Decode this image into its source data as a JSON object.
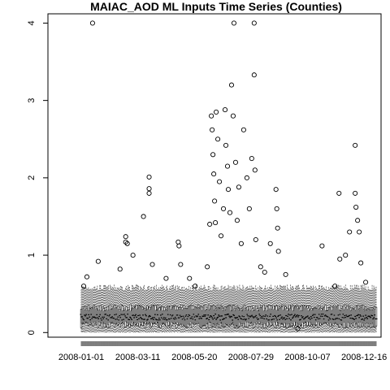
{
  "chart_data": {
    "type": "scatter",
    "subtype": "boxplot-time-series",
    "title": "MAIAC_AOD ML Inputs Time Series (Counties)",
    "xlabel": "",
    "ylabel": "",
    "x_ticks": [
      "2008-01-01",
      "2008-03-11",
      "2008-05-20",
      "2008-07-29",
      "2008-10-07",
      "2008-12-16"
    ],
    "x_range": [
      "2008-01-01",
      "2008-12-31"
    ],
    "y_ticks": [
      0,
      1,
      2,
      3,
      4
    ],
    "ylim": [
      -0.06,
      4.12
    ],
    "grid": false,
    "legend": "none",
    "box_fill": "#ffffff",
    "box_stroke": "#000000",
    "typical_box": {
      "q1": 0.1,
      "median": 0.2,
      "q3": 0.32,
      "whisker_low": 0.0,
      "whisker_high": 0.58
    },
    "outliers": [
      {
        "x": "2008-01-04",
        "y": 0.6
      },
      {
        "x": "2008-01-08",
        "y": 0.72
      },
      {
        "x": "2008-01-15",
        "y": 4.0
      },
      {
        "x": "2008-01-22",
        "y": 0.92
      },
      {
        "x": "2008-02-18",
        "y": 0.82
      },
      {
        "x": "2008-02-25",
        "y": 1.24
      },
      {
        "x": "2008-02-25",
        "y": 1.17
      },
      {
        "x": "2008-02-27",
        "y": 1.15
      },
      {
        "x": "2008-03-05",
        "y": 1.0
      },
      {
        "x": "2008-03-18",
        "y": 1.5
      },
      {
        "x": "2008-03-25",
        "y": 2.01
      },
      {
        "x": "2008-03-25",
        "y": 1.86
      },
      {
        "x": "2008-03-25",
        "y": 1.8
      },
      {
        "x": "2008-03-29",
        "y": 0.88
      },
      {
        "x": "2008-04-15",
        "y": 0.7
      },
      {
        "x": "2008-04-30",
        "y": 1.17
      },
      {
        "x": "2008-05-01",
        "y": 1.12
      },
      {
        "x": "2008-05-03",
        "y": 0.88
      },
      {
        "x": "2008-05-14",
        "y": 0.7
      },
      {
        "x": "2008-05-21",
        "y": 0.6
      },
      {
        "x": "2008-06-05",
        "y": 0.85
      },
      {
        "x": "2008-06-08",
        "y": 1.4
      },
      {
        "x": "2008-06-10",
        "y": 2.8
      },
      {
        "x": "2008-06-11",
        "y": 2.62
      },
      {
        "x": "2008-06-12",
        "y": 2.3
      },
      {
        "x": "2008-06-13",
        "y": 2.05
      },
      {
        "x": "2008-06-14",
        "y": 1.7
      },
      {
        "x": "2008-06-15",
        "y": 1.42
      },
      {
        "x": "2008-06-16",
        "y": 2.85
      },
      {
        "x": "2008-06-18",
        "y": 2.5
      },
      {
        "x": "2008-06-20",
        "y": 1.95
      },
      {
        "x": "2008-06-22",
        "y": 1.25
      },
      {
        "x": "2008-06-25",
        "y": 1.6
      },
      {
        "x": "2008-06-27",
        "y": 2.88
      },
      {
        "x": "2008-06-28",
        "y": 2.42
      },
      {
        "x": "2008-06-30",
        "y": 2.15
      },
      {
        "x": "2008-07-01",
        "y": 1.85
      },
      {
        "x": "2008-07-03",
        "y": 1.55
      },
      {
        "x": "2008-07-05",
        "y": 3.2
      },
      {
        "x": "2008-07-07",
        "y": 2.8
      },
      {
        "x": "2008-07-08",
        "y": 4.0
      },
      {
        "x": "2008-07-10",
        "y": 2.2
      },
      {
        "x": "2008-07-12",
        "y": 1.45
      },
      {
        "x": "2008-07-14",
        "y": 1.88
      },
      {
        "x": "2008-07-17",
        "y": 1.15
      },
      {
        "x": "2008-07-20",
        "y": 2.62
      },
      {
        "x": "2008-07-24",
        "y": 2.0
      },
      {
        "x": "2008-07-27",
        "y": 1.6
      },
      {
        "x": "2008-07-30",
        "y": 2.25
      },
      {
        "x": "2008-08-02",
        "y": 4.0
      },
      {
        "x": "2008-08-02",
        "y": 3.33
      },
      {
        "x": "2008-08-03",
        "y": 2.1
      },
      {
        "x": "2008-08-04",
        "y": 1.2
      },
      {
        "x": "2008-08-10",
        "y": 0.85
      },
      {
        "x": "2008-08-15",
        "y": 0.78
      },
      {
        "x": "2008-08-22",
        "y": 1.15
      },
      {
        "x": "2008-08-29",
        "y": 1.85
      },
      {
        "x": "2008-08-30",
        "y": 1.6
      },
      {
        "x": "2008-08-31",
        "y": 1.35
      },
      {
        "x": "2008-09-01",
        "y": 1.05
      },
      {
        "x": "2008-09-10",
        "y": 0.75
      },
      {
        "x": "2008-09-25",
        "y": 0.05
      },
      {
        "x": "2008-10-25",
        "y": 1.12
      },
      {
        "x": "2008-11-10",
        "y": 0.6
      },
      {
        "x": "2008-11-15",
        "y": 1.8
      },
      {
        "x": "2008-11-16",
        "y": 0.95
      },
      {
        "x": "2008-11-23",
        "y": 1.0
      },
      {
        "x": "2008-11-28",
        "y": 1.3
      },
      {
        "x": "2008-12-05",
        "y": 2.42
      },
      {
        "x": "2008-12-05",
        "y": 1.8
      },
      {
        "x": "2008-12-06",
        "y": 1.62
      },
      {
        "x": "2008-12-08",
        "y": 1.45
      },
      {
        "x": "2008-12-10",
        "y": 1.3
      },
      {
        "x": "2008-12-12",
        "y": 0.9
      },
      {
        "x": "2008-12-18",
        "y": 0.65
      }
    ]
  }
}
